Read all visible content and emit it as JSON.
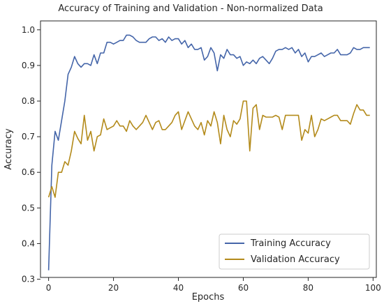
{
  "chart_data": {
    "type": "line",
    "title": "Accuracy of Training and Validation - Non-normalized Data",
    "xlabel": "Epochs",
    "ylabel": "Accuracy",
    "xlim": [
      -2.5,
      101
    ],
    "ylim": [
      0.305,
      1.025
    ],
    "x_ticks": [
      0,
      20,
      40,
      60,
      80,
      100
    ],
    "y_ticks": [
      0.3,
      0.4,
      0.5,
      0.6,
      0.7,
      0.8,
      0.9,
      1.0
    ],
    "x_tick_labels": [
      "0",
      "20",
      "40",
      "60",
      "80",
      "100"
    ],
    "y_tick_labels": [
      "0.3",
      "0.4",
      "0.5",
      "0.6",
      "0.7",
      "0.8",
      "0.9",
      "1.0"
    ],
    "grid": false,
    "legend_position": "lower-right",
    "series": [
      {
        "name": "Training Accuracy",
        "color": "#4465a9",
        "values": [
          0.325,
          0.62,
          0.715,
          0.69,
          0.745,
          0.8,
          0.875,
          0.895,
          0.925,
          0.905,
          0.895,
          0.905,
          0.905,
          0.9,
          0.93,
          0.905,
          0.935,
          0.935,
          0.965,
          0.965,
          0.96,
          0.965,
          0.97,
          0.97,
          0.985,
          0.985,
          0.98,
          0.97,
          0.965,
          0.965,
          0.965,
          0.975,
          0.98,
          0.98,
          0.97,
          0.975,
          0.965,
          0.98,
          0.97,
          0.975,
          0.975,
          0.96,
          0.97,
          0.95,
          0.96,
          0.945,
          0.945,
          0.95,
          0.915,
          0.925,
          0.95,
          0.935,
          0.885,
          0.93,
          0.92,
          0.945,
          0.93,
          0.93,
          0.92,
          0.925,
          0.9,
          0.91,
          0.905,
          0.915,
          0.905,
          0.92,
          0.925,
          0.915,
          0.905,
          0.92,
          0.94,
          0.945,
          0.945,
          0.95,
          0.945,
          0.95,
          0.935,
          0.945,
          0.925,
          0.935,
          0.91,
          0.925,
          0.925,
          0.93,
          0.935,
          0.925,
          0.93,
          0.935,
          0.935,
          0.945,
          0.93,
          0.93,
          0.93,
          0.935,
          0.95,
          0.945,
          0.945,
          0.95,
          0.95,
          0.95
        ]
      },
      {
        "name": "Validation Accuracy",
        "color": "#b38a1a",
        "values": [
          0.53,
          0.56,
          0.53,
          0.6,
          0.6,
          0.63,
          0.62,
          0.66,
          0.715,
          0.695,
          0.68,
          0.76,
          0.69,
          0.715,
          0.66,
          0.7,
          0.705,
          0.75,
          0.72,
          0.725,
          0.73,
          0.745,
          0.73,
          0.73,
          0.715,
          0.745,
          0.73,
          0.72,
          0.73,
          0.74,
          0.76,
          0.74,
          0.72,
          0.74,
          0.745,
          0.72,
          0.72,
          0.73,
          0.74,
          0.76,
          0.77,
          0.72,
          0.745,
          0.77,
          0.75,
          0.73,
          0.72,
          0.74,
          0.705,
          0.745,
          0.73,
          0.77,
          0.74,
          0.68,
          0.76,
          0.72,
          0.7,
          0.745,
          0.735,
          0.75,
          0.8,
          0.8,
          0.66,
          0.78,
          0.79,
          0.72,
          0.76,
          0.755,
          0.755,
          0.755,
          0.76,
          0.755,
          0.72,
          0.76,
          0.76,
          0.76,
          0.76,
          0.76,
          0.69,
          0.72,
          0.71,
          0.76,
          0.7,
          0.72,
          0.75,
          0.745,
          0.75,
          0.755,
          0.76,
          0.76,
          0.745,
          0.745,
          0.745,
          0.735,
          0.765,
          0.79,
          0.775,
          0.775,
          0.76,
          0.76
        ]
      }
    ]
  }
}
